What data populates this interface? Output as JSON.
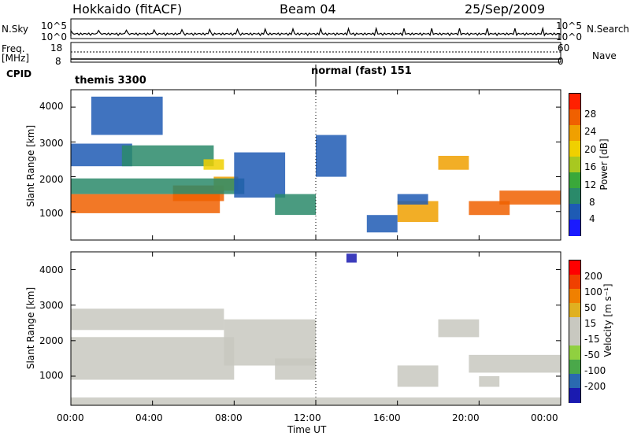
{
  "header": {
    "site": "Hokkaido (fitACF)",
    "beam": "Beam 04",
    "date": "25/Sep/2009"
  },
  "left_labels": {
    "nsky": "N.Sky",
    "freq_line1": "Freq.",
    "freq_line2": "[MHz]",
    "cpid": "CPID"
  },
  "right_labels": {
    "nsearch": "N.Search",
    "nave": "Nave"
  },
  "strip_ticks": {
    "nsky_top": "10^5",
    "nsky_bottom": "10^0",
    "nsearch_top": "10^5",
    "nsearch_bottom": "10^0",
    "freq_top": "18",
    "freq_bottom": "8",
    "nave_top": "60",
    "nave_bottom": "0"
  },
  "cpid": {
    "segments": [
      {
        "label": "themis 3300",
        "start_ut": 0,
        "end_ut": 12
      },
      {
        "label": "normal (fast) 151",
        "start_ut": 12,
        "end_ut": 24
      }
    ]
  },
  "axes": {
    "ylabel": "Slant Range [km]",
    "xlabel": "Time UT",
    "y_ticks": [
      "4000",
      "3000",
      "2000",
      "1000"
    ],
    "x_ticks": [
      "00:00",
      "04:00",
      "08:00",
      "12:00",
      "16:00",
      "20:00",
      "00:00"
    ]
  },
  "colors": {
    "power": [
      "#1a1aff",
      "#1e5bb4",
      "#2a8a6a",
      "#3aa83a",
      "#a8c820",
      "#f0d000",
      "#f0a000",
      "#f06000",
      "#ff2000"
    ],
    "velocity": [
      "#1a1ab0",
      "#2a6ab0",
      "#4aa84a",
      "#90d040",
      "#c8c8c0",
      "#c8c8c0",
      "#e0b020",
      "#f08000",
      "#f04000",
      "#ff0000"
    ]
  },
  "chart_data": [
    {
      "type": "heatmap",
      "name": "Power",
      "colorbar_label": "Power [dB]",
      "colorbar_ticks": [
        "28",
        "24",
        "20",
        "16",
        "12",
        "8",
        "4"
      ],
      "clim": [
        0,
        32
      ],
      "x_range_ut": [
        0,
        24
      ],
      "y_range_km": [
        180,
        4500
      ],
      "features": [
        {
          "t0": 0.0,
          "t1": 7.3,
          "r0": 950,
          "r1": 1500,
          "value": 28
        },
        {
          "t0": 5.0,
          "t1": 7.5,
          "r0": 1300,
          "r1": 1750,
          "value": 26
        },
        {
          "t0": 7.0,
          "t1": 8.2,
          "r0": 1600,
          "r1": 2000,
          "value": 24
        },
        {
          "t0": 0.0,
          "t1": 8.5,
          "r0": 1500,
          "r1": 1950,
          "value": 10
        },
        {
          "t0": 0.0,
          "t1": 3.0,
          "r0": 2300,
          "r1": 2950,
          "value": 6
        },
        {
          "t0": 2.5,
          "t1": 7.0,
          "r0": 2300,
          "r1": 2900,
          "value": 9
        },
        {
          "t0": 1.0,
          "t1": 4.5,
          "r0": 3200,
          "r1": 4300,
          "value": 6
        },
        {
          "t0": 6.5,
          "t1": 7.5,
          "r0": 2200,
          "r1": 2500,
          "value": 20
        },
        {
          "t0": 8.0,
          "t1": 10.5,
          "r0": 1400,
          "r1": 2700,
          "value": 7
        },
        {
          "t0": 10.0,
          "t1": 12.0,
          "r0": 900,
          "r1": 1500,
          "value": 8
        },
        {
          "t0": 12.0,
          "t1": 13.5,
          "r0": 2000,
          "r1": 3200,
          "value": 6
        },
        {
          "t0": 16.0,
          "t1": 18.0,
          "r0": 700,
          "r1": 1300,
          "value": 24
        },
        {
          "t0": 18.0,
          "t1": 19.5,
          "r0": 2200,
          "r1": 2600,
          "value": 24
        },
        {
          "t0": 19.5,
          "t1": 21.5,
          "r0": 900,
          "r1": 1300,
          "value": 26
        },
        {
          "t0": 21.0,
          "t1": 24.0,
          "r0": 1200,
          "r1": 1600,
          "value": 27
        },
        {
          "t0": 16.0,
          "t1": 17.5,
          "r0": 1200,
          "r1": 1500,
          "value": 6
        },
        {
          "t0": 14.5,
          "t1": 16.0,
          "r0": 400,
          "r1": 900,
          "value": 6
        }
      ]
    },
    {
      "type": "heatmap",
      "name": "Velocity",
      "colorbar_label": "Velocity [m s⁻¹]",
      "colorbar_ticks": [
        "200",
        "100",
        "50",
        "15",
        "-15",
        "-50",
        "-100",
        "-200"
      ],
      "clim": [
        -250,
        250
      ],
      "x_range_ut": [
        0,
        24
      ],
      "y_range_km": [
        180,
        4500
      ],
      "features": [
        {
          "t0": 0.0,
          "t1": 8.0,
          "r0": 900,
          "r1": 2100,
          "value": 0
        },
        {
          "t0": 0.0,
          "t1": 7.5,
          "r0": 2300,
          "r1": 2900,
          "value": 0
        },
        {
          "t0": 7.5,
          "t1": 12.0,
          "r0": 1300,
          "r1": 2600,
          "value": 0
        },
        {
          "t0": 10.0,
          "t1": 12.0,
          "r0": 900,
          "r1": 1500,
          "value": 0
        },
        {
          "t0": 16.0,
          "t1": 18.0,
          "r0": 700,
          "r1": 1300,
          "value": 0
        },
        {
          "t0": 18.0,
          "t1": 20.0,
          "r0": 2100,
          "r1": 2600,
          "value": 20
        },
        {
          "t0": 19.5,
          "t1": 24.0,
          "r0": 1100,
          "r1": 1600,
          "value": 0
        },
        {
          "t0": 13.5,
          "t1": 14.0,
          "r0": 4200,
          "r1": 4450,
          "value": -220
        },
        {
          "t0": 0.0,
          "t1": 24.0,
          "r0": 180,
          "r1": 400,
          "value": -30
        },
        {
          "t0": 20.0,
          "t1": 21.0,
          "r0": 700,
          "r1": 1000,
          "value": 40
        }
      ]
    }
  ]
}
